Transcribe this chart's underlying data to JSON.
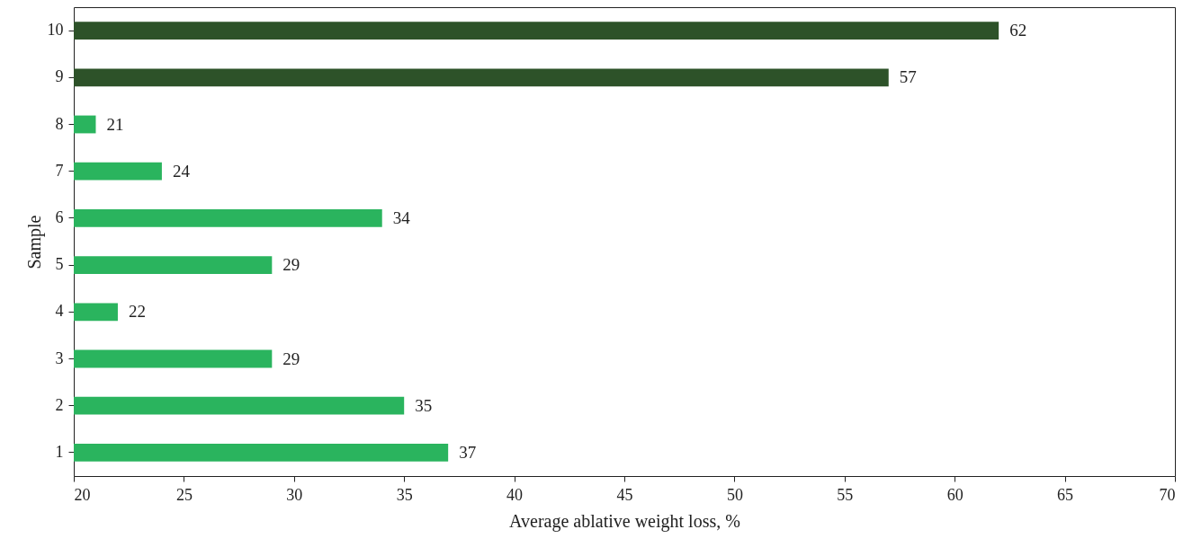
{
  "chart_data": {
    "type": "bar",
    "orientation": "horizontal",
    "xlabel": "Average ablative weight loss, %",
    "ylabel": "Sample",
    "categories": [
      "10",
      "9",
      "8",
      "7",
      "6",
      "5",
      "4",
      "3",
      "2",
      "1"
    ],
    "values": [
      62,
      57,
      21,
      24,
      34,
      29,
      22,
      29,
      35,
      37
    ],
    "colors": [
      "#2d5229",
      "#2d5229",
      "#2ab45e",
      "#2ab45e",
      "#2ab45e",
      "#2ab45e",
      "#2ab45e",
      "#2ab45e",
      "#2ab45e",
      "#2ab45e"
    ],
    "xlim": [
      20,
      70
    ],
    "xticks": [
      20,
      25,
      30,
      35,
      40,
      45,
      50,
      55,
      60,
      65,
      70
    ],
    "data_labels": true
  }
}
